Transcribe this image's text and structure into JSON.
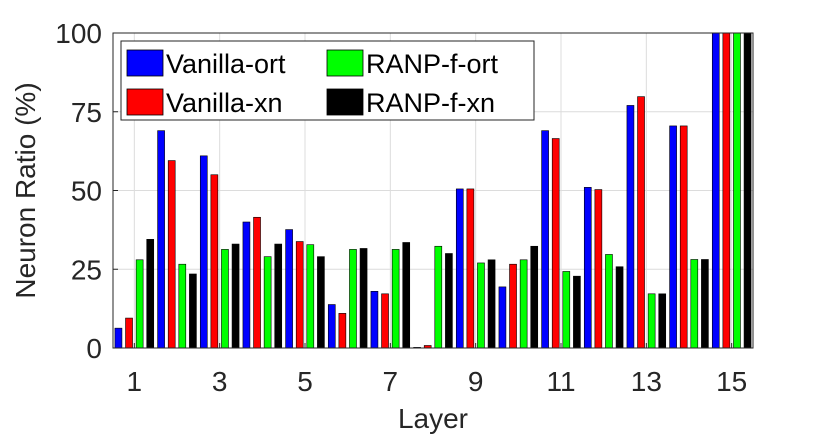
{
  "chart_data": {
    "type": "bar",
    "xlabel": "Layer",
    "ylabel": "Neuron Ratio (%)",
    "ylim": [
      0,
      100
    ],
    "y_ticks": [
      0,
      25,
      50,
      75,
      100
    ],
    "x_ticks": [
      1,
      3,
      5,
      7,
      9,
      11,
      13,
      15
    ],
    "x_tick_labels": [
      "1",
      "3",
      "5",
      "7",
      "9",
      "11",
      "13",
      "15"
    ],
    "y_tick_labels": [
      "0",
      "25",
      "50",
      "75",
      "100"
    ],
    "grid": true,
    "legend_position": "top-left",
    "categories": [
      1,
      2,
      3,
      4,
      5,
      6,
      7,
      8,
      9,
      10,
      11,
      12,
      13,
      14,
      15
    ],
    "series": [
      {
        "name": "Vanilla-ort",
        "color": "#0000ff",
        "values": [
          6.3,
          69,
          61,
          40,
          37.6,
          13.8,
          18,
          0.2,
          50.5,
          19.4,
          69,
          51,
          77,
          70.5,
          100
        ]
      },
      {
        "name": "Vanilla-xn",
        "color": "#ff0000",
        "values": [
          9.5,
          59.5,
          55,
          41.5,
          33.8,
          11,
          17.2,
          0.8,
          50.5,
          26.6,
          66.5,
          50.3,
          79.8,
          70.5,
          100
        ]
      },
      {
        "name": "RANP-f-ort",
        "color": "#00ff00",
        "values": [
          28,
          26.6,
          31.3,
          29,
          32.8,
          31.3,
          31.3,
          32.3,
          27,
          28,
          24.3,
          29.7,
          17.2,
          28.1,
          100
        ]
      },
      {
        "name": "RANP-f-xn",
        "color": "#000000",
        "values": [
          34.5,
          23.5,
          33,
          33,
          29,
          31.6,
          33.5,
          30,
          28,
          32.3,
          22.8,
          25.8,
          17.2,
          28.1,
          100
        ]
      }
    ]
  }
}
